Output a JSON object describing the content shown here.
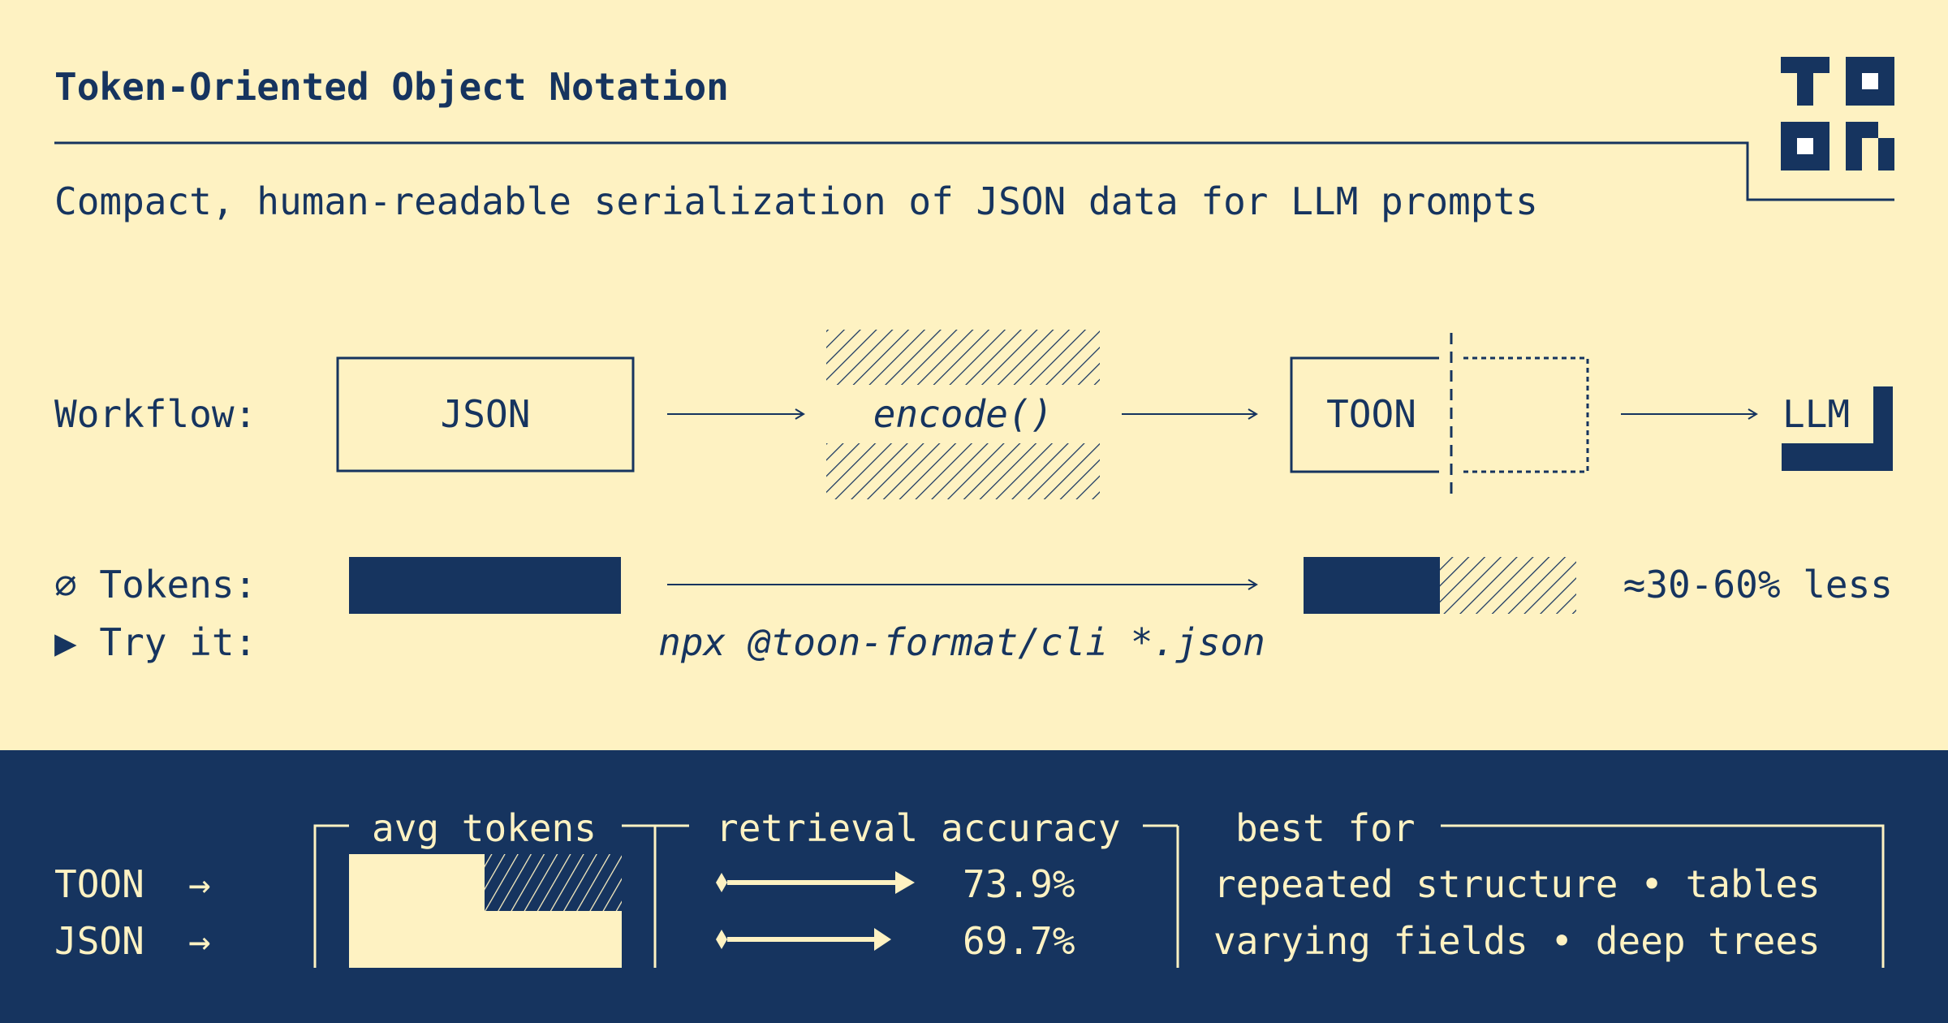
{
  "header": {
    "title": "Token-Oriented Object Notation",
    "subtitle": "Compact, human-readable serialization of JSON data for LLM prompts",
    "logo_text": "TOON"
  },
  "workflow": {
    "label": "Workflow:",
    "steps": [
      "JSON",
      "encode()",
      "TOON",
      "LLM"
    ]
  },
  "tokens": {
    "icon": "diameter-icon",
    "label": "⌀ Tokens:",
    "savings": "≈30-60% less"
  },
  "try_it": {
    "icon": "play-triangle-icon",
    "label": "▶ Try it:",
    "command": "npx @toon-format/cli *.json"
  },
  "stats": {
    "rows": [
      {
        "label": "TOON",
        "arrow": "→",
        "accuracy": "73.9%",
        "best_for": "repeated structure • tables"
      },
      {
        "label": "JSON",
        "arrow": "→",
        "accuracy": "69.7%",
        "best_for": "varying fields • deep trees"
      }
    ],
    "headers": {
      "avg_tokens": "avg tokens",
      "accuracy": "retrieval accuracy",
      "best_for": "best for"
    }
  },
  "colors": {
    "background": "#fef2c2",
    "navy": "#16345f",
    "white": "#ffffff"
  }
}
